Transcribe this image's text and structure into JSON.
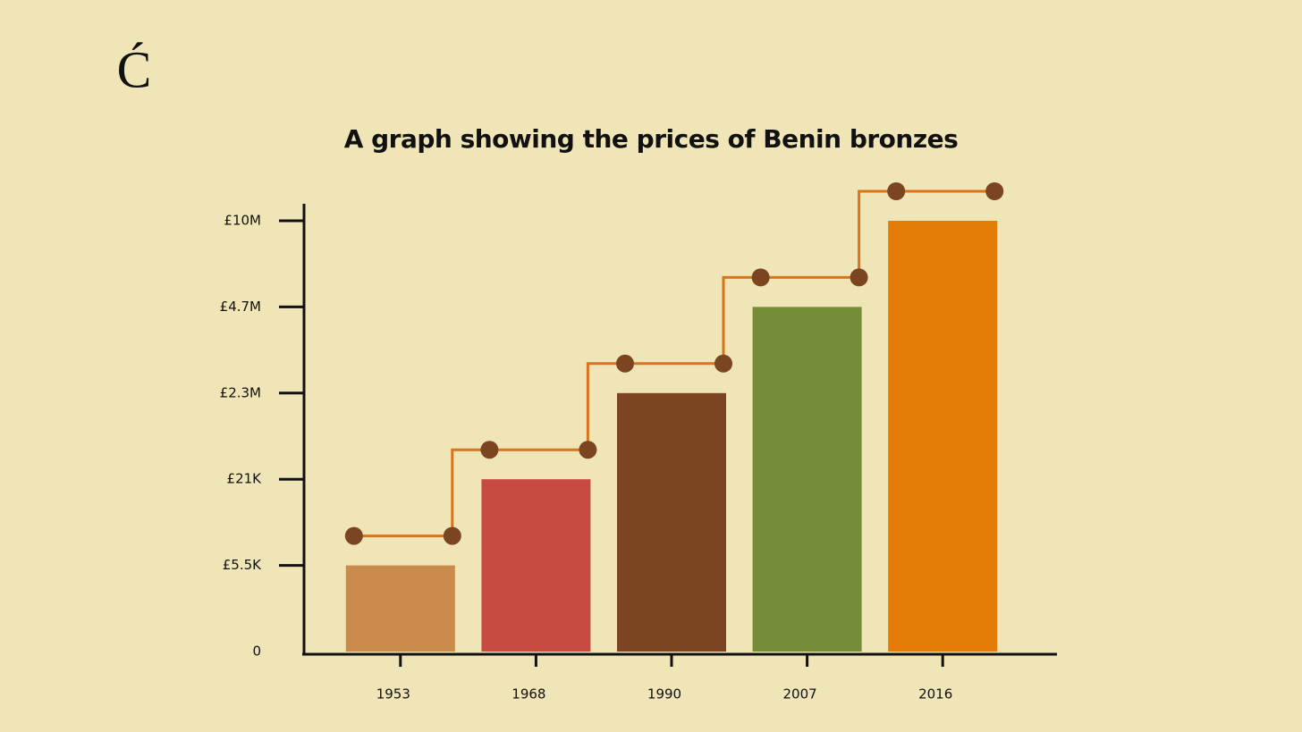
{
  "logo": "Ć",
  "chart_data": {
    "type": "bar",
    "title": "A graph showing the prices of Benin bronzes",
    "categories": [
      "1953",
      "1968",
      "1990",
      "2007",
      "2016"
    ],
    "values": [
      5500,
      21000,
      2300000,
      4700000,
      10000000
    ],
    "colors": [
      "#c98a4b",
      "#c64a40",
      "#7a4520",
      "#748b38",
      "#e47c08"
    ],
    "ylim": [
      0,
      10000000
    ],
    "yticks": [
      0,
      {
        "value": 5500,
        "label": "£5.5K"
      },
      {
        "value": 21000,
        "label": "£21K"
      },
      {
        "value": 2300000,
        "label": "£2.3M"
      },
      {
        "value": 4700000,
        "label": "£4.7M"
      },
      {
        "value": 10000000,
        "label": "£10M"
      }
    ],
    "grid": false
  }
}
